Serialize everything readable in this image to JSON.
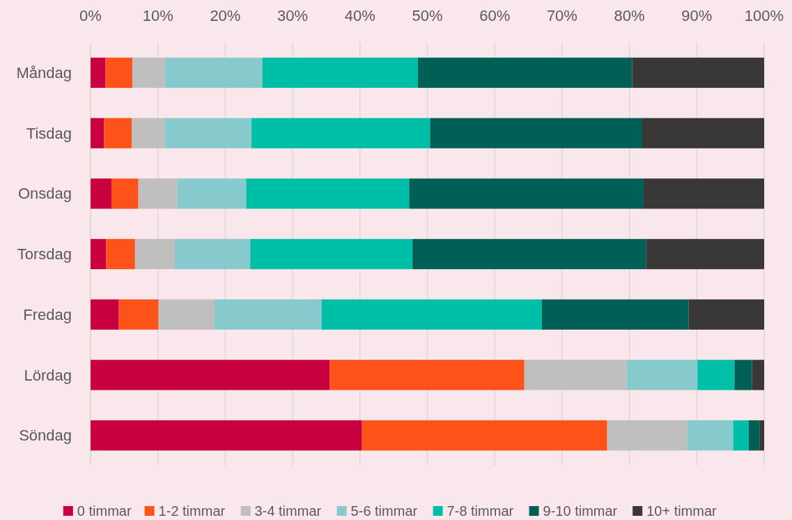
{
  "chart_data": {
    "type": "bar",
    "orientation": "horizontal",
    "stacked": true,
    "categories": [
      "Måndag",
      "Tisdag",
      "Onsdag",
      "Torsdag",
      "Fredag",
      "Lördag",
      "Söndag"
    ],
    "series": [
      {
        "name": "0 timmar",
        "color": "#c9003f",
        "values": [
          2.2,
          2.0,
          3.1,
          2.3,
          4.2,
          35.5,
          40.3
        ]
      },
      {
        "name": "1-2 timmar",
        "color": "#fd5219",
        "values": [
          4.0,
          4.1,
          4.0,
          4.3,
          5.9,
          28.9,
          36.4
        ]
      },
      {
        "name": "3-4 timmar",
        "color": "#bfbfbf",
        "values": [
          4.9,
          4.9,
          5.8,
          5.9,
          8.3,
          15.2,
          11.9
        ]
      },
      {
        "name": "5-6 timmar",
        "color": "#87cacd",
        "values": [
          14.4,
          12.9,
          10.2,
          11.2,
          15.9,
          10.5,
          6.8
        ]
      },
      {
        "name": "7-8 timmar",
        "color": "#00bfa8",
        "values": [
          23.1,
          26.5,
          24.2,
          24.1,
          32.7,
          5.5,
          2.3
        ]
      },
      {
        "name": "9-10 timmar",
        "color": "#006055",
        "values": [
          31.8,
          31.5,
          34.8,
          34.7,
          21.8,
          2.6,
          1.6
        ]
      },
      {
        "name": "10+ timmar",
        "color": "#3a3836",
        "values": [
          19.6,
          18.1,
          17.9,
          17.5,
          11.2,
          1.8,
          0.7
        ]
      }
    ],
    "xlim": [
      0,
      100
    ],
    "xticks": [
      {
        "value": 0,
        "label": "0%"
      },
      {
        "value": 10,
        "label": "10%"
      },
      {
        "value": 20,
        "label": "20%"
      },
      {
        "value": 30,
        "label": "30%"
      },
      {
        "value": 40,
        "label": "40%"
      },
      {
        "value": 50,
        "label": "50%"
      },
      {
        "value": 60,
        "label": "60%"
      },
      {
        "value": 70,
        "label": "70%"
      },
      {
        "value": 80,
        "label": "80%"
      },
      {
        "value": 90,
        "label": "90%"
      },
      {
        "value": 100,
        "label": "100%"
      }
    ],
    "grid": "x",
    "legend": "bottom"
  }
}
